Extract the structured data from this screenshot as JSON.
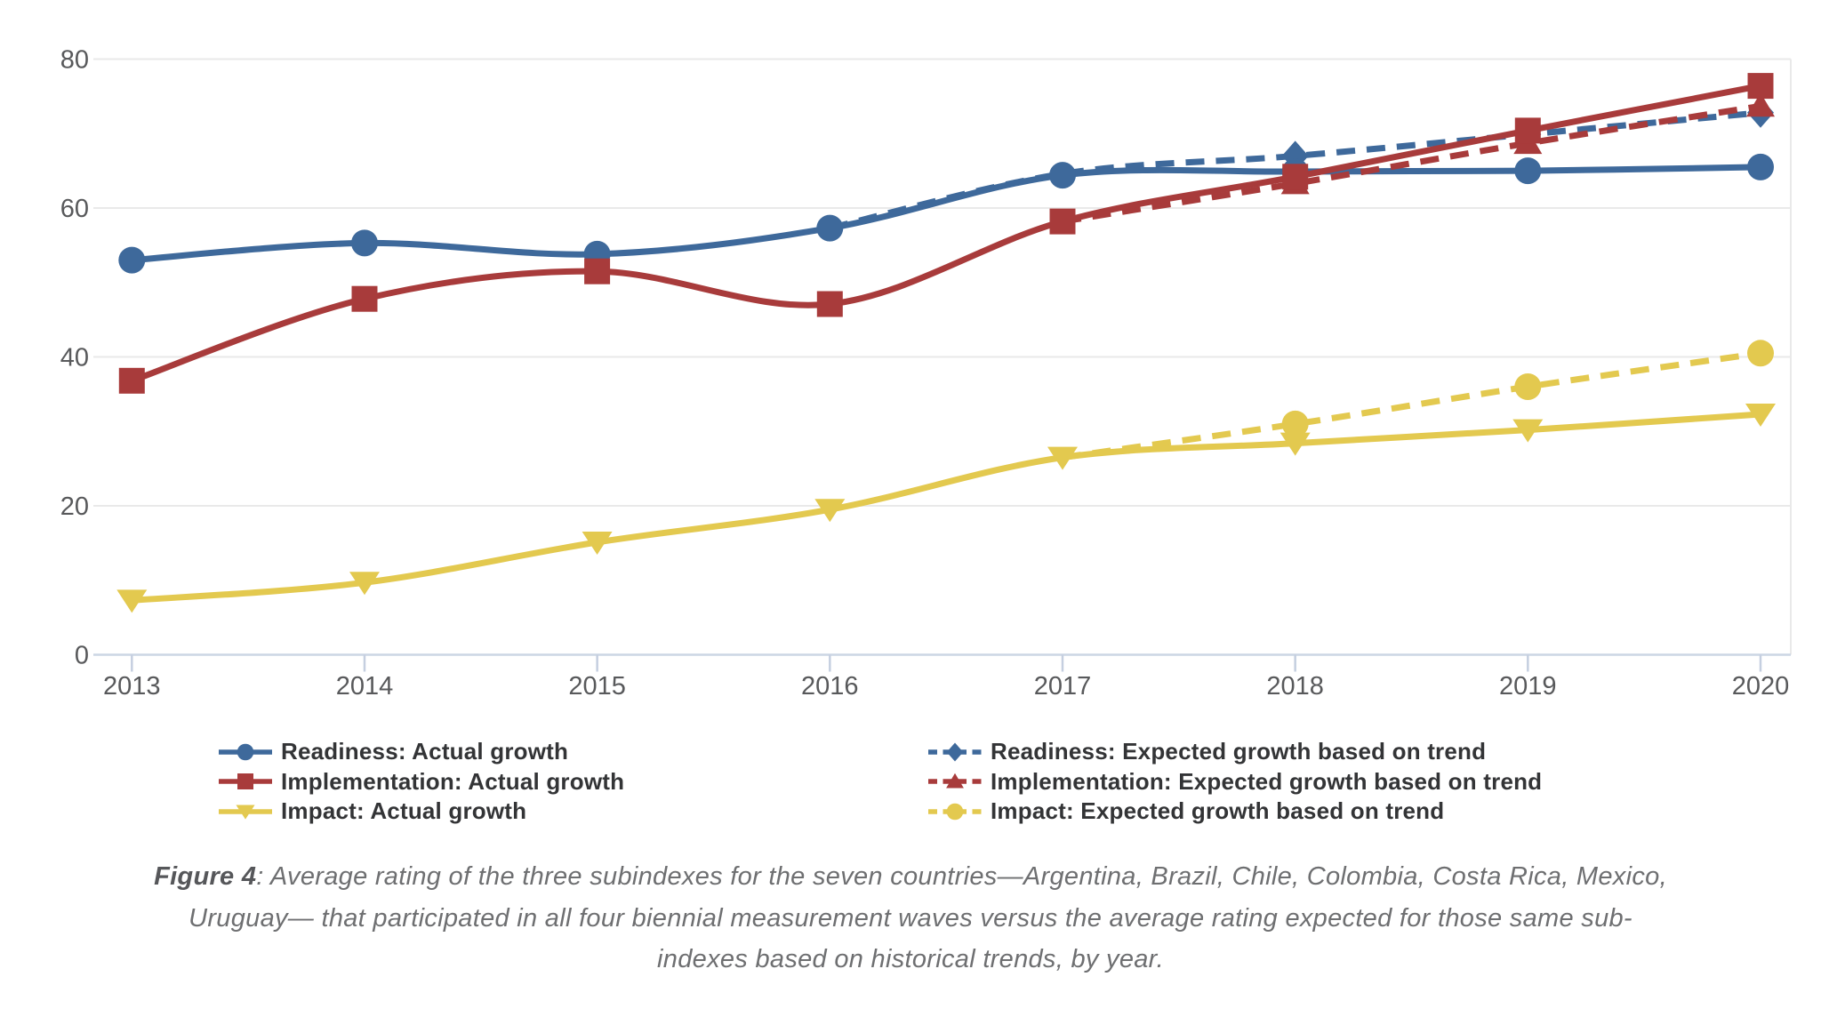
{
  "colors": {
    "readiness_blue": "#3E699B",
    "implementation_red": "#A83B3B",
    "impact_yellow": "#E3C94F",
    "gridline": "#e9e9e9",
    "axis_line": "#ccd6e4",
    "axis_tick": "#c5cfe0",
    "axis_text": "#58595b",
    "legend_text": "#333436",
    "caption_text": "#6e6f71"
  },
  "chart_data": {
    "type": "line",
    "x": [
      2013,
      2014,
      2015,
      2016,
      2017,
      2018,
      2019,
      2020
    ],
    "ylim": [
      0,
      80
    ],
    "yticks": [
      0,
      20,
      40,
      60,
      80
    ],
    "grid": "horizontal",
    "legend_position": "bottom",
    "xlabel": "",
    "ylabel": "",
    "series": [
      {
        "key": "readiness_expected",
        "name": "Readiness: Expected growth based on trend",
        "color": "#3E699B",
        "style": "dashed",
        "marker": "diamond",
        "marker_from": 5,
        "values": [
          null,
          null,
          null,
          57.3,
          64.6,
          67.0,
          69.9,
          72.8
        ]
      },
      {
        "key": "readiness_actual",
        "name": "Readiness: Actual growth",
        "color": "#3E699B",
        "style": "solid",
        "marker": "circle",
        "marker_from": 0,
        "values": [
          53.0,
          55.3,
          53.8,
          57.3,
          64.4,
          64.9,
          65.0,
          65.5
        ]
      },
      {
        "key": "implementation_expected",
        "name": "Implementation: Expected growth based on trend",
        "color": "#A83B3B",
        "style": "dashed",
        "marker": "triangle-up",
        "marker_from": 5,
        "values": [
          null,
          null,
          null,
          null,
          58.2,
          63.3,
          68.7,
          73.7
        ]
      },
      {
        "key": "implementation_actual",
        "name": "Implementation: Actual growth",
        "color": "#A83B3B",
        "style": "solid",
        "marker": "square",
        "marker_from": 0,
        "values": [
          36.8,
          47.8,
          51.5,
          47.1,
          58.2,
          64.2,
          70.4,
          76.4
        ]
      },
      {
        "key": "impact_expected",
        "name": "Impact: Expected growth based on trend",
        "color": "#E3C94F",
        "style": "dashed",
        "marker": "circle",
        "marker_from": 5,
        "values": [
          null,
          null,
          null,
          null,
          26.5,
          31.0,
          36.0,
          40.5
        ]
      },
      {
        "key": "impact_actual",
        "name": "Impact: Actual growth",
        "color": "#E3C94F",
        "style": "solid",
        "marker": "triangle-down",
        "marker_from": 0,
        "values": [
          7.3,
          9.7,
          15.1,
          19.5,
          26.5,
          28.4,
          30.2,
          32.3
        ]
      }
    ]
  },
  "legend": {
    "left": [
      {
        "key": "readiness_actual",
        "label": "Readiness: Actual growth"
      },
      {
        "key": "implementation_actual",
        "label": "Implementation: Actual growth"
      },
      {
        "key": "impact_actual",
        "label": "Impact: Actual growth"
      }
    ],
    "right": [
      {
        "key": "readiness_expected",
        "label": "Readiness: Expected growth based on trend"
      },
      {
        "key": "implementation_expected",
        "label": "Implementation: Expected growth based on trend"
      },
      {
        "key": "impact_expected",
        "label": "Impact: Expected growth based on trend"
      }
    ]
  },
  "caption": {
    "figure_label": "Figure 4",
    "line1_rest": ": Average rating of the three subindexes for the seven countries—Argentina, Brazil, Chile, Colombia, Costa Rica, Mexico,",
    "line2": "Uruguay— that participated in all four biennial measurement waves versus the average rating expected for those same sub-",
    "line3": "indexes based on historical trends, by year."
  }
}
